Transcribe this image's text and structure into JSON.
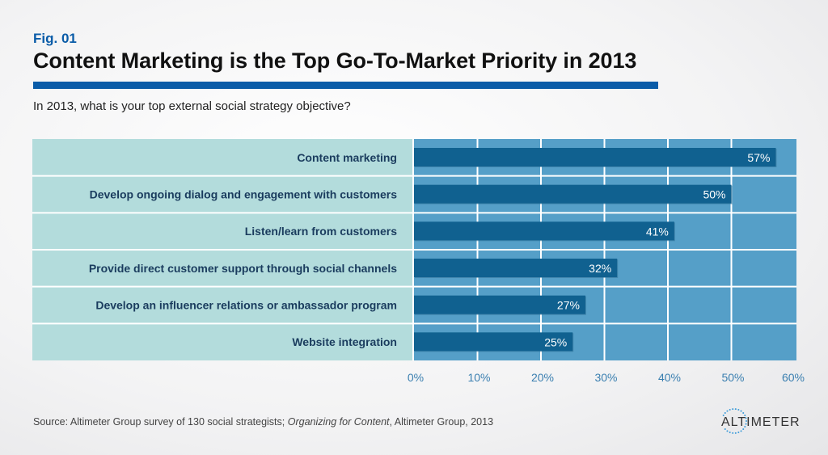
{
  "header": {
    "fig_label": "Fig. 01",
    "title": "Content Marketing is the Top Go-To-Market Priority in 2013",
    "question": "In 2013, what is your top external social strategy objective?"
  },
  "footer": {
    "source_prefix": "Source: Altimeter Group survey of 130 social strategists; ",
    "source_italic": "Organizing for Content",
    "source_suffix": ", Altimeter Group, 2013",
    "logo_text": "ALTIMETER"
  },
  "colors": {
    "accent": "#0a5ca8",
    "label_bg": "#b3dcdc",
    "plot_bg": "#559fc8",
    "bar": "#106190",
    "label_text": "#1a3c5e",
    "tick_text": "#3a7fb0"
  },
  "chart_data": {
    "type": "bar",
    "orientation": "horizontal",
    "categories": [
      "Content marketing",
      "Develop ongoing dialog and engagement with customers",
      "Listen/learn from customers",
      "Provide direct customer support through social channels",
      "Develop an influencer relations or ambassador program",
      "Website integration"
    ],
    "values": [
      57,
      50,
      41,
      32,
      27,
      25
    ],
    "data_labels": [
      "57%",
      "50%",
      "41%",
      "32%",
      "27%",
      "25%"
    ],
    "xlim": [
      0,
      60
    ],
    "xticks": [
      0,
      10,
      20,
      30,
      40,
      50,
      60
    ],
    "xtick_labels": [
      "0%",
      "10%",
      "20%",
      "30%",
      "40%",
      "50%",
      "60%"
    ],
    "grid": true,
    "legend": "none"
  }
}
